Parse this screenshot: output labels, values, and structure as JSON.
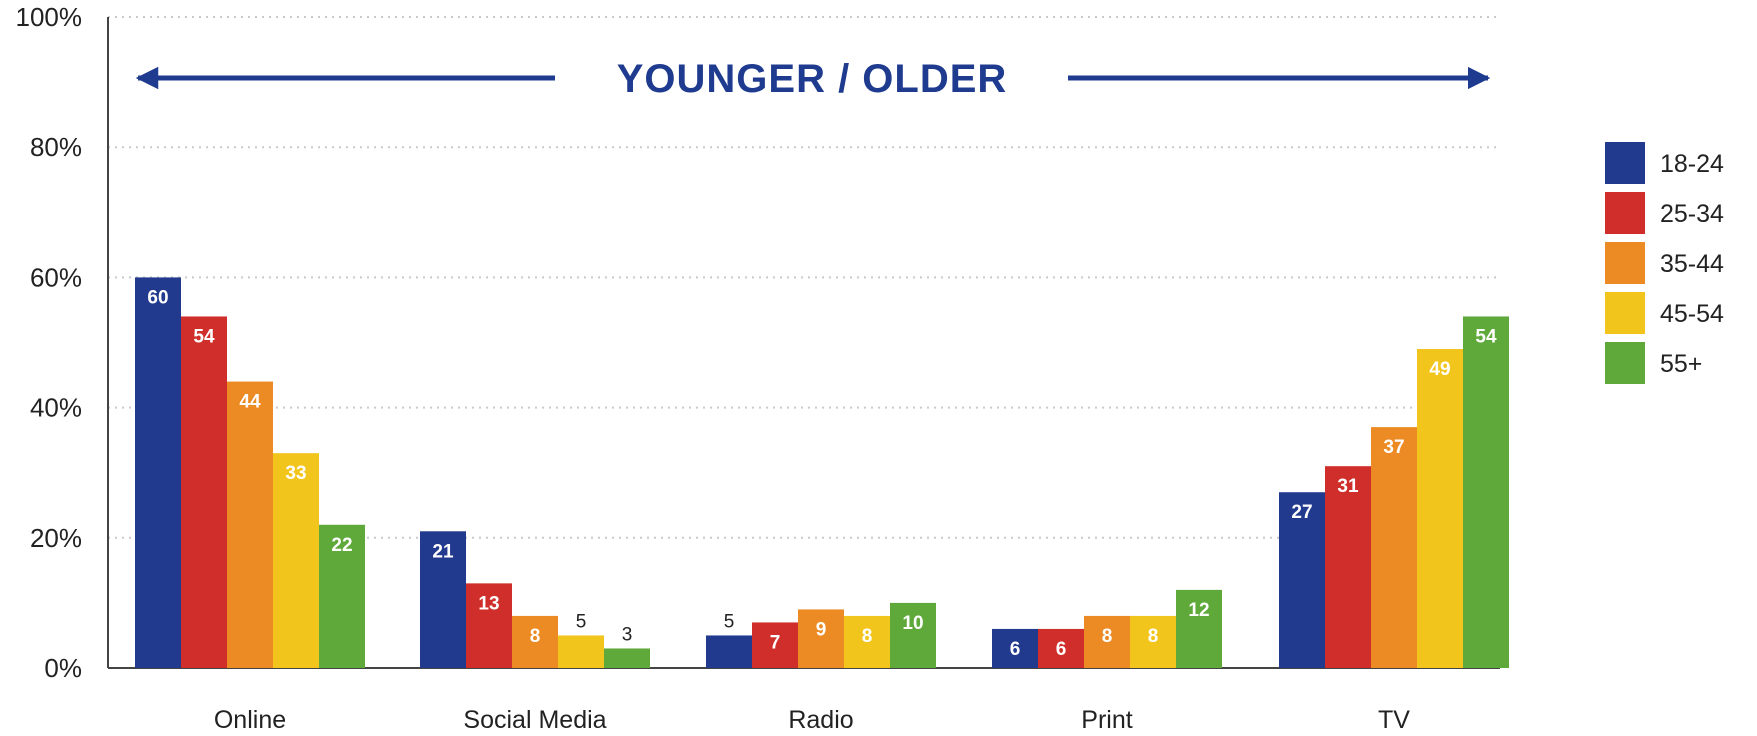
{
  "chart_data": {
    "type": "bar",
    "title": "YOUNGER / OLDER",
    "categories": [
      "Online",
      "Social Media",
      "Radio",
      "Print",
      "TV"
    ],
    "series": [
      {
        "name": "18-24",
        "color": "#213a8e",
        "values": [
          60,
          21,
          5,
          6,
          27
        ]
      },
      {
        "name": "25-34",
        "color": "#cf2e2a",
        "values": [
          54,
          13,
          7,
          6,
          31
        ]
      },
      {
        "name": "35-44",
        "color": "#ec8a24",
        "values": [
          44,
          8,
          9,
          8,
          37
        ]
      },
      {
        "name": "45-54",
        "color": "#f2c51c",
        "values": [
          33,
          5,
          8,
          8,
          49
        ]
      },
      {
        "name": "55+",
        "color": "#5fa83a",
        "values": [
          22,
          3,
          10,
          12,
          54
        ]
      }
    ],
    "ylim": [
      0,
      100
    ],
    "yticks": [
      "0%",
      "20%",
      "40%",
      "60%",
      "80%",
      "100%"
    ],
    "ytick_values": [
      0,
      20,
      40,
      60,
      80,
      100
    ],
    "grid": true,
    "legend_position": "right",
    "xlabel": "",
    "ylabel": ""
  }
}
